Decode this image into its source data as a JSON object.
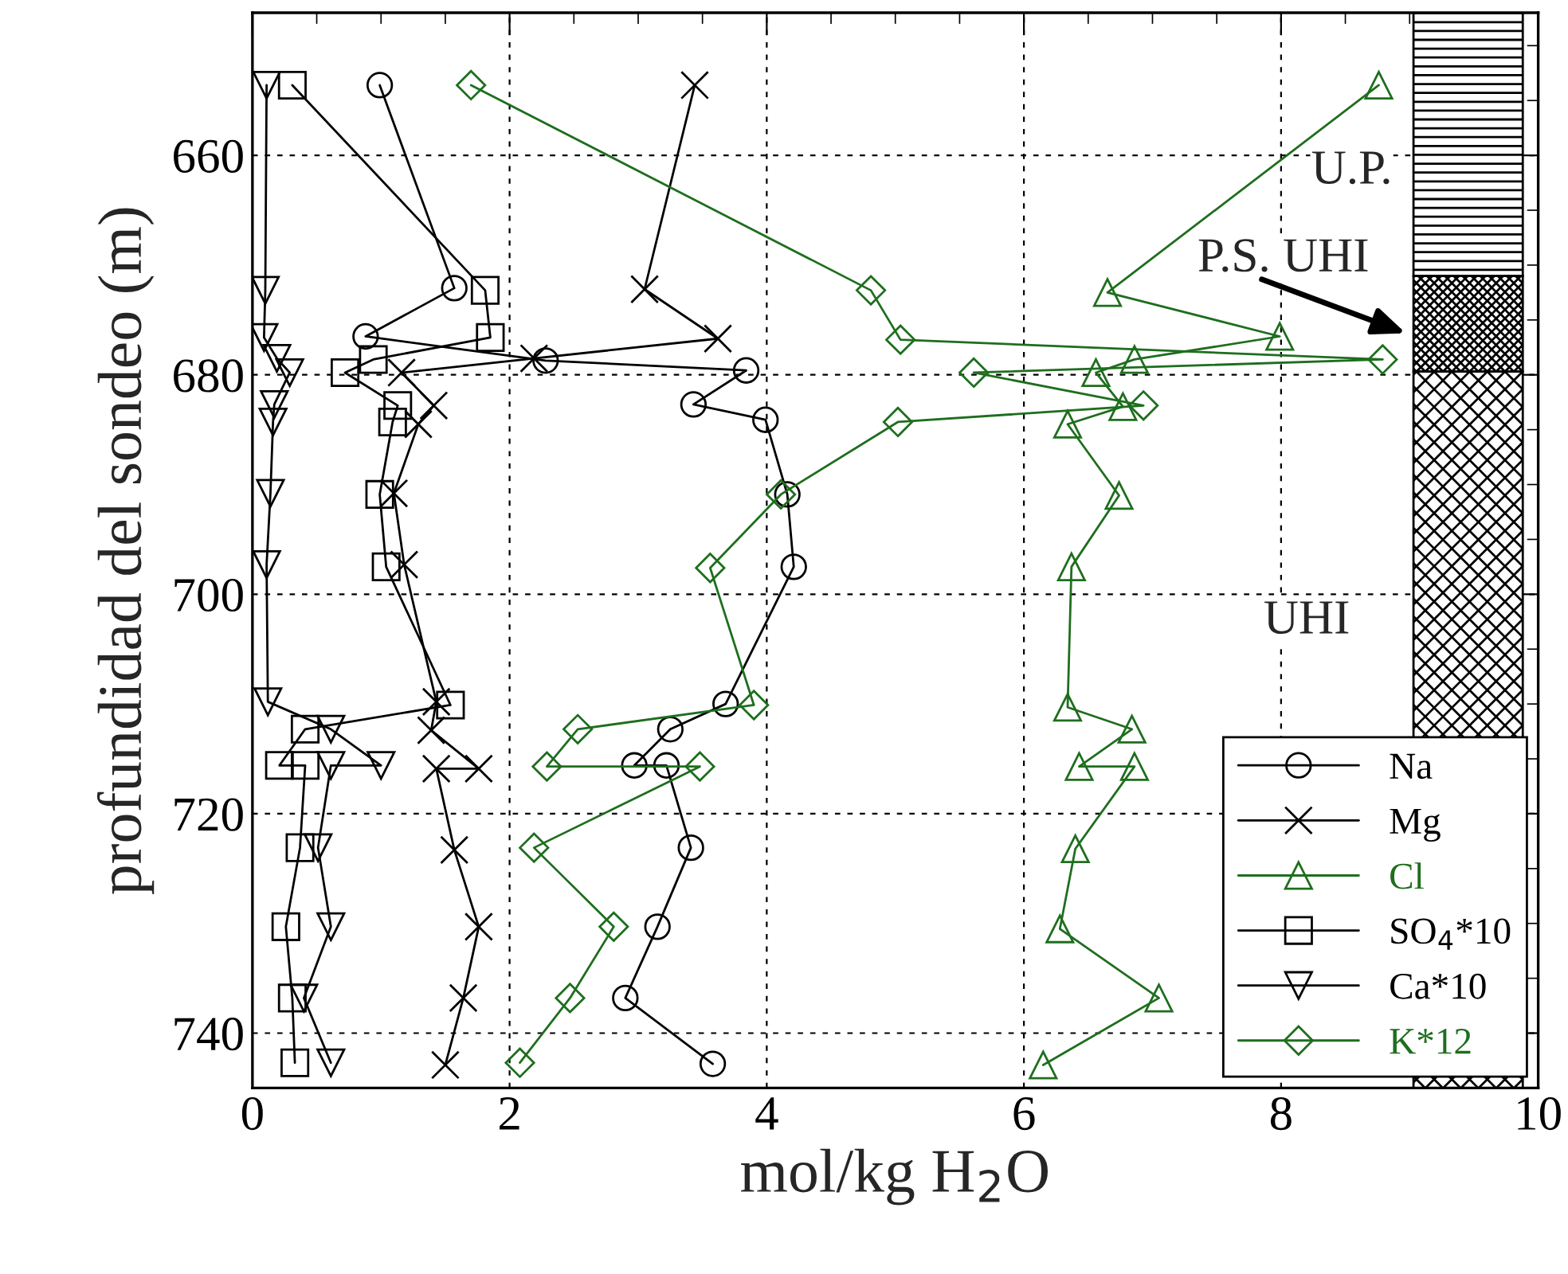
{
  "chart_data": {
    "type": "line",
    "orientation": "horizontal",
    "xlabel": "mol/kg H$_{2}$O",
    "ylabel": "profundidad del sondeo (m)",
    "xlim": [
      0,
      10
    ],
    "xticks": [
      0,
      2,
      4,
      6,
      8,
      10
    ],
    "ylim": [
      745,
      647
    ],
    "yticks": [
      660,
      680,
      700,
      720,
      740
    ],
    "grid": true,
    "legend": "bottom right",
    "annotations": [
      "U.P.",
      "P.S. UHI",
      "UHI"
    ],
    "series": [
      {
        "name": "Na",
        "color": "#000000",
        "marker": "circle",
        "x": [
          653.6,
          672.1,
          676.5,
          678.7,
          679.6,
          682.7,
          684.1,
          690.9,
          697.5,
          710.0,
          712.3,
          715.6,
          715.6,
          723.1,
          730.3,
          736.8,
          742.8
        ],
        "values": [
          0.99,
          1.57,
          0.88,
          2.28,
          3.84,
          3.43,
          3.99,
          4.16,
          4.21,
          3.68,
          3.25,
          2.97,
          3.22,
          3.41,
          3.15,
          2.9,
          3.58
        ]
      },
      {
        "name": "Mg",
        "color": "#000000",
        "marker": "cross",
        "x": [
          653.6,
          672.2,
          676.7,
          678.5,
          679.8,
          682.8,
          684.5,
          690.8,
          697.3,
          709.8,
          712.4,
          715.9,
          715.9,
          723.3,
          730.3,
          736.8,
          742.9
        ],
        "values": [
          3.44,
          3.05,
          3.62,
          2.19,
          1.16,
          1.41,
          1.29,
          1.1,
          1.18,
          1.43,
          1.39,
          1.76,
          1.43,
          1.57,
          1.76,
          1.64,
          1.5
        ]
      },
      {
        "name": "Cl",
        "color": "#1e6e1e",
        "marker": "triangle",
        "x": [
          653.6,
          672.5,
          676.5,
          678.6,
          679.8,
          682.9,
          684.5,
          691.0,
          697.5,
          710.3,
          712.3,
          715.7,
          715.7,
          723.2,
          730.5,
          736.8,
          742.9
        ],
        "values": [
          8.76,
          6.65,
          7.99,
          6.86,
          6.56,
          6.77,
          6.34,
          6.74,
          6.37,
          6.34,
          6.84,
          6.43,
          6.86,
          6.4,
          6.28,
          7.05,
          6.15
        ]
      },
      {
        "name": "SO$_{4}$*10",
        "color": "#000000",
        "marker": "square",
        "x": [
          653.6,
          672.3,
          676.6,
          678.6,
          679.8,
          682.8,
          684.3,
          690.9,
          697.5,
          710.1,
          712.3,
          715.6,
          715.6,
          723.1,
          730.3,
          736.8,
          742.7
        ],
        "values": [
          0.31,
          1.81,
          1.85,
          0.94,
          0.72,
          1.13,
          1.09,
          0.99,
          1.04,
          1.54,
          0.41,
          0.21,
          0.41,
          0.37,
          0.26,
          0.31,
          0.33
        ]
      },
      {
        "name": "Ca*10",
        "color": "#000000",
        "marker": "triangle_down",
        "x": [
          653.6,
          672.3,
          676.6,
          678.5,
          679.8,
          682.7,
          684.3,
          690.8,
          697.3,
          709.8,
          712.3,
          715.6,
          715.6,
          723.1,
          730.3,
          736.8,
          742.7
        ],
        "values": [
          0.11,
          0.1,
          0.09,
          0.19,
          0.29,
          0.17,
          0.16,
          0.14,
          0.11,
          0.12,
          0.61,
          1.0,
          0.61,
          0.51,
          0.61,
          0.4,
          0.61
        ]
      },
      {
        "name": "K*12",
        "color": "#1e6e1e",
        "marker": "diamond",
        "x": [
          653.6,
          672.3,
          676.8,
          678.6,
          679.8,
          682.8,
          684.3,
          690.9,
          697.6,
          710.1,
          712.3,
          715.7,
          715.7,
          723.1,
          730.3,
          736.8,
          742.7
        ],
        "values": [
          1.7,
          4.81,
          5.04,
          8.79,
          5.61,
          6.93,
          5.02,
          4.11,
          3.56,
          3.9,
          2.53,
          2.29,
          3.48,
          2.19,
          2.81,
          2.47,
          2.08
        ]
      }
    ]
  }
}
